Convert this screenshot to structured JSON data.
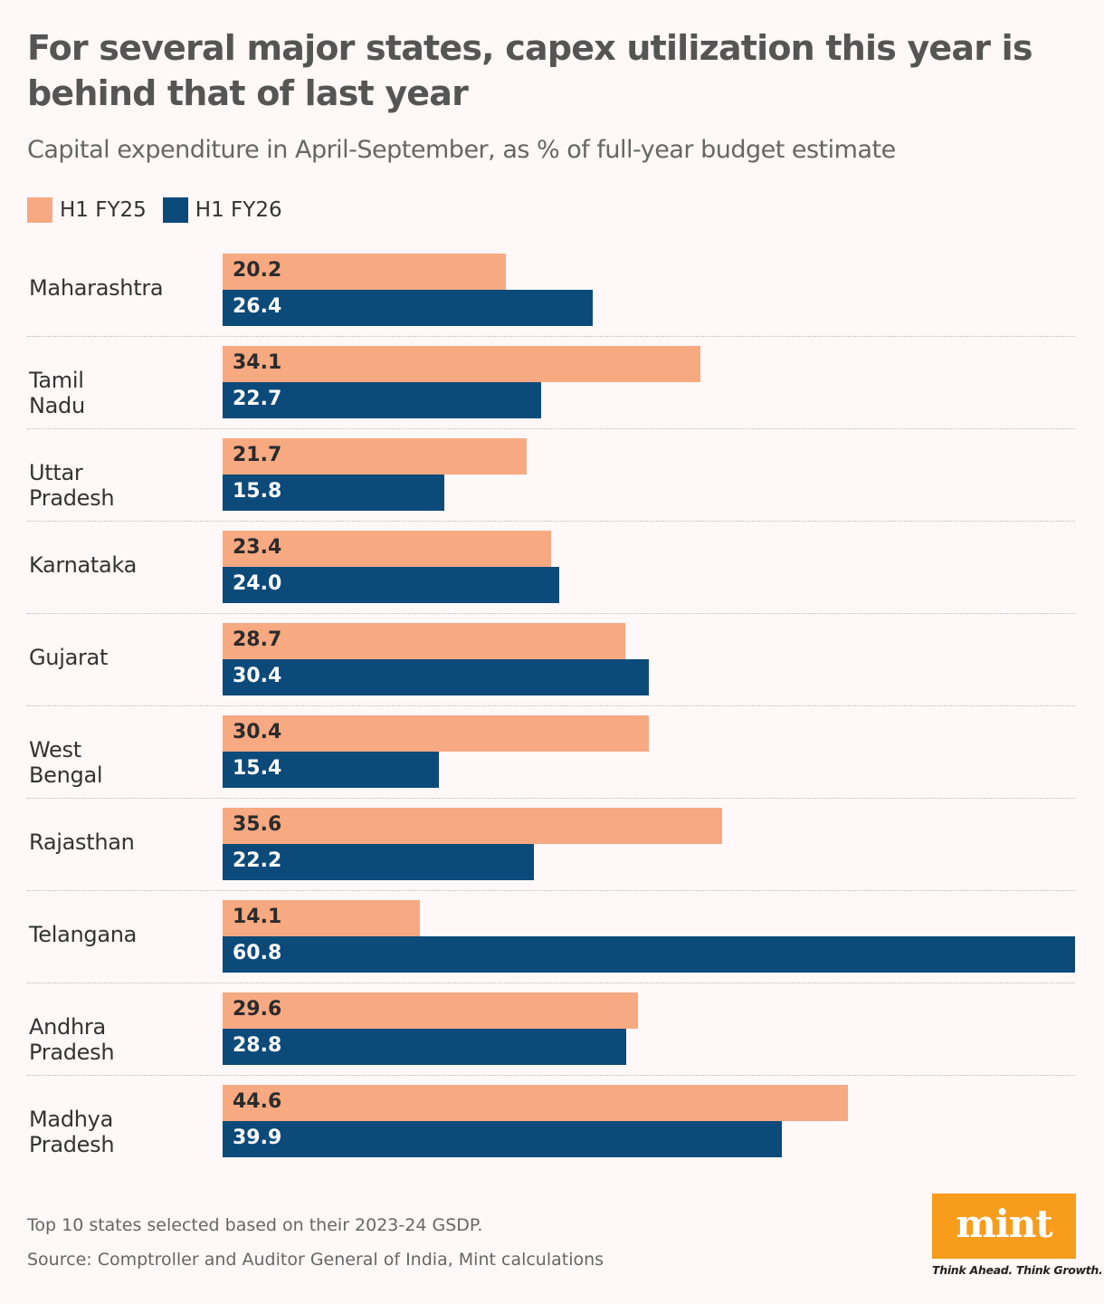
{
  "chart_data": {
    "type": "bar",
    "orientation": "horizontal",
    "title": "For several major states, capex utilization this year is behind that of last year",
    "subtitle": "Capital expenditure in April-September, as % of full-year budget estimate",
    "categories": [
      "Maharashtra",
      "Tamil Nadu",
      "Uttar Pradesh",
      "Karnataka",
      "Gujarat",
      "West Bengal",
      "Rajasthan",
      "Telangana",
      "Andhra Pradesh",
      "Madhya Pradesh"
    ],
    "series": [
      {
        "name": "H1 FY25",
        "color": "#f7a982",
        "values": [
          20.2,
          34.1,
          21.7,
          23.4,
          28.7,
          30.4,
          35.6,
          14.1,
          29.6,
          44.6
        ]
      },
      {
        "name": "H1 FY26",
        "color": "#0c4a7a",
        "values": [
          26.4,
          22.7,
          15.8,
          24.0,
          30.4,
          15.4,
          22.2,
          60.8,
          28.8,
          39.9
        ]
      }
    ],
    "xlim": [
      0,
      60.8
    ],
    "grid": false,
    "legend": "top-left",
    "data_labels": true
  },
  "footer": {
    "note": "Top 10 states selected based on their 2023-24 GSDP.",
    "source": "Source: Comptroller and Auditor General of India, Mint calculations"
  },
  "logo": {
    "text": "mint",
    "tagline": "Think Ahead. Think Growth.",
    "color": "#f89c1c"
  }
}
